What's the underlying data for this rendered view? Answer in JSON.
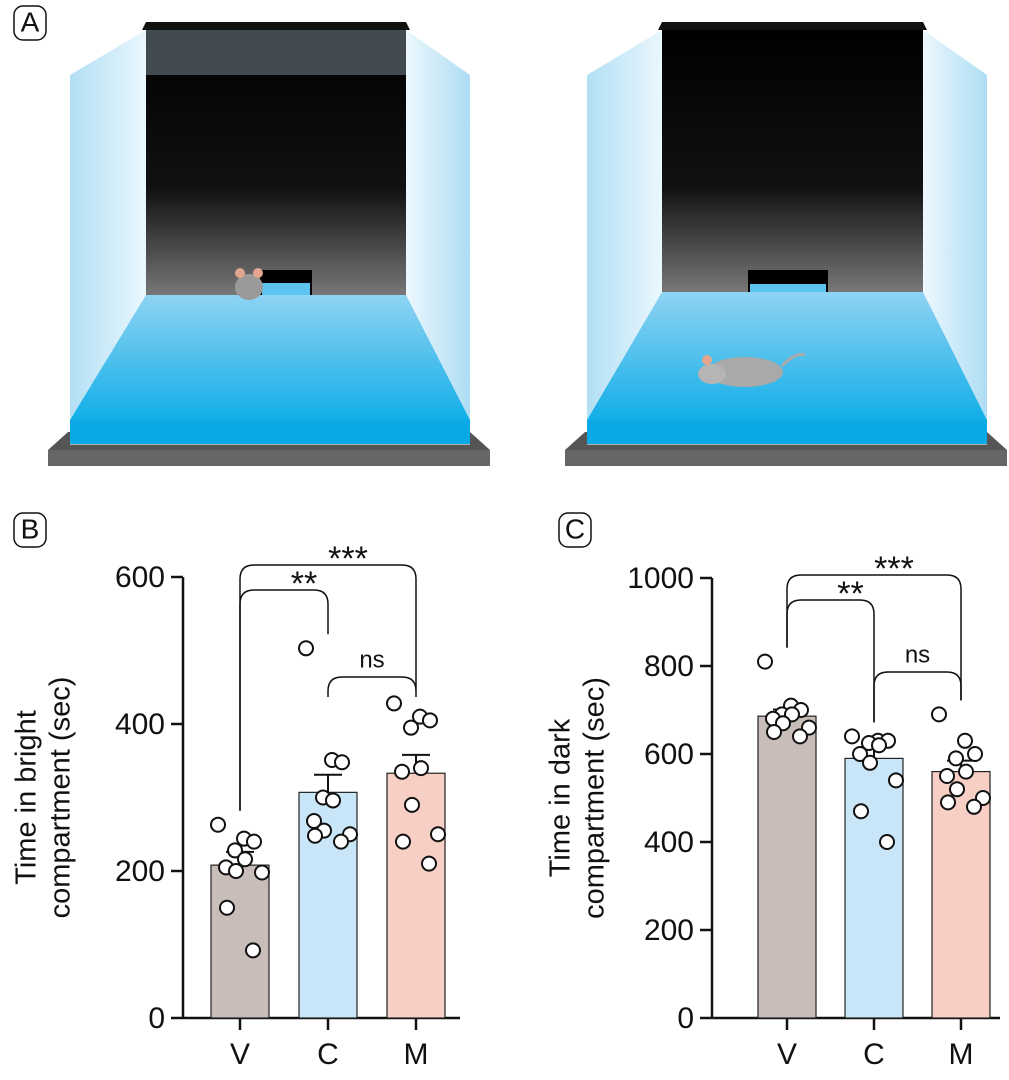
{
  "panel_labels": [
    "A",
    "B",
    "C"
  ],
  "chart_data": [
    {
      "type": "bar",
      "ylabel": [
        "Time in bright",
        "compartment (sec)"
      ],
      "categories": [
        "V",
        "C",
        "M"
      ],
      "values": [
        208,
        307,
        333
      ],
      "errors": [
        18,
        24,
        25
      ],
      "colors": [
        "#c8bdb9",
        "#c9e5f8",
        "#f8cfc4"
      ],
      "points": [
        [
          263,
          244,
          240,
          228,
          216,
          205,
          200,
          198,
          150,
          92
        ],
        [
          503,
          351,
          348,
          300,
          296,
          268,
          255,
          250,
          248,
          240
        ],
        [
          428,
          410,
          405,
          395,
          340,
          335,
          290,
          250,
          240,
          210
        ]
      ],
      "ylim": [
        0,
        600
      ],
      "yticks": [
        0,
        200,
        400,
        600
      ],
      "annotations": [
        {
          "text": "**",
          "between": [
            "V",
            "C"
          ]
        },
        {
          "text": "***",
          "between": [
            "V",
            "M"
          ]
        },
        {
          "text": "ns",
          "between": [
            "C",
            "M"
          ]
        }
      ]
    },
    {
      "type": "bar",
      "ylabel": [
        "Time in dark",
        "compartment (sec)"
      ],
      "categories": [
        "V",
        "C",
        "M"
      ],
      "values": [
        686,
        590,
        560
      ],
      "errors": [
        15,
        25,
        25
      ],
      "colors": [
        "#c8bdb9",
        "#c9e5f8",
        "#f8cfc4"
      ],
      "points": [
        [
          810,
          710,
          700,
          690,
          690,
          680,
          670,
          660,
          650,
          640
        ],
        [
          640,
          630,
          630,
          625,
          620,
          600,
          580,
          540,
          470,
          400
        ],
        [
          690,
          630,
          600,
          590,
          560,
          550,
          520,
          500,
          490,
          480
        ]
      ],
      "ylim": [
        0,
        1000
      ],
      "yticks": [
        0,
        200,
        400,
        600,
        800,
        1000
      ],
      "annotations": [
        {
          "text": "**",
          "between": [
            "V",
            "C"
          ]
        },
        {
          "text": "***",
          "between": [
            "V",
            "M"
          ]
        },
        {
          "text": "ns",
          "between": [
            "C",
            "M"
          ]
        }
      ]
    }
  ]
}
